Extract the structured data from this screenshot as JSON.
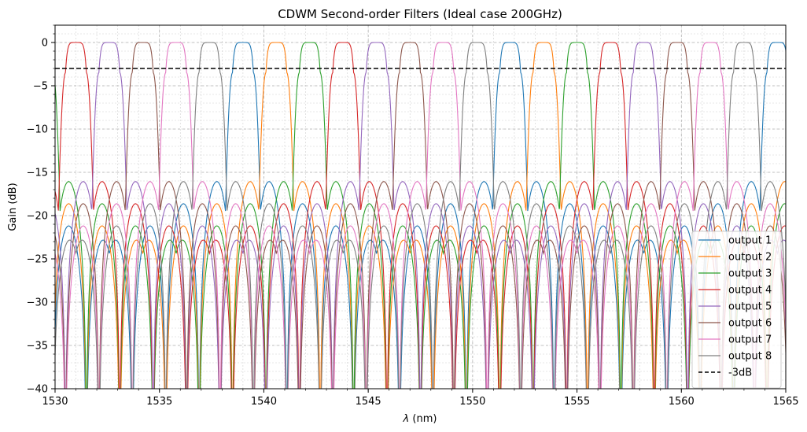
{
  "chart_data": {
    "type": "line",
    "title": "CDWM Second-order Filters (Ideal case 200GHz)",
    "xlabel_symbol": "λ",
    "xlabel_unit": " (nm)",
    "ylabel": "Gain (dB)",
    "xlim": [
      1530,
      1565
    ],
    "ylim": [
      -40,
      2
    ],
    "xticks": [
      1530,
      1535,
      1540,
      1545,
      1550,
      1555,
      1560,
      1565
    ],
    "yticks": [
      0,
      -5,
      -10,
      -15,
      -20,
      -25,
      -30,
      -35,
      -40
    ],
    "grid": true,
    "legend_position": "lower right",
    "channel_period_nm": 12.8,
    "channel_spacing_nm": 1.6,
    "passband_width_nm": 1.0,
    "series": [
      {
        "name": "output 1",
        "color": "#1f77b4",
        "center_nm": 1539.0
      },
      {
        "name": "output 2",
        "color": "#ff7f0e",
        "center_nm": 1540.6
      },
      {
        "name": "output 3",
        "color": "#2ca02c",
        "center_nm": 1542.2
      },
      {
        "name": "output 4",
        "color": "#d62728",
        "center_nm": 1543.8
      },
      {
        "name": "output 5",
        "color": "#9467bd",
        "center_nm": 1532.6
      },
      {
        "name": "output 6",
        "color": "#8c564b",
        "center_nm": 1534.2
      },
      {
        "name": "output 7",
        "color": "#e377c2",
        "center_nm": 1535.8
      },
      {
        "name": "output 8",
        "color": "#7f7f7f",
        "center_nm": 1537.4
      }
    ],
    "reference_line": {
      "name": "-3dB",
      "value": -3,
      "color": "#000000",
      "style": "dashed"
    }
  }
}
